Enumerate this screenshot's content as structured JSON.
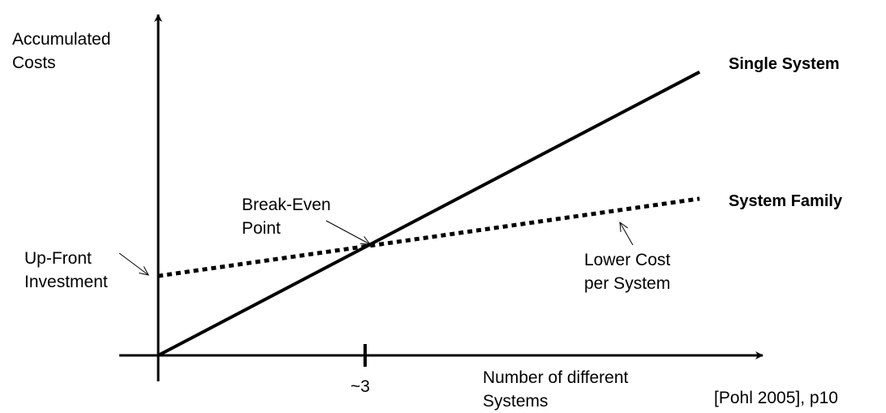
{
  "chart_data": {
    "type": "line",
    "ylabel": "Accumulated Costs",
    "xlabel": "Number of different Systems",
    "x_ticks": [
      {
        "value": 3,
        "label": "~3"
      }
    ],
    "grid": false,
    "series": [
      {
        "name": "Single System",
        "style": "solid",
        "x": [
          0,
          7.85
        ],
        "y": [
          0,
          7.85
        ]
      },
      {
        "name": "System Family",
        "style": "dotted",
        "x": [
          0,
          7.85
        ],
        "y": [
          2.2,
          4.34
        ]
      }
    ],
    "annotations": {
      "break_even": "Break-Even Point",
      "up_front": "Up-Front Investment",
      "lower_cost": "Lower Cost per System"
    },
    "source": "[Pohl 2005], p10",
    "color": "#000000"
  }
}
